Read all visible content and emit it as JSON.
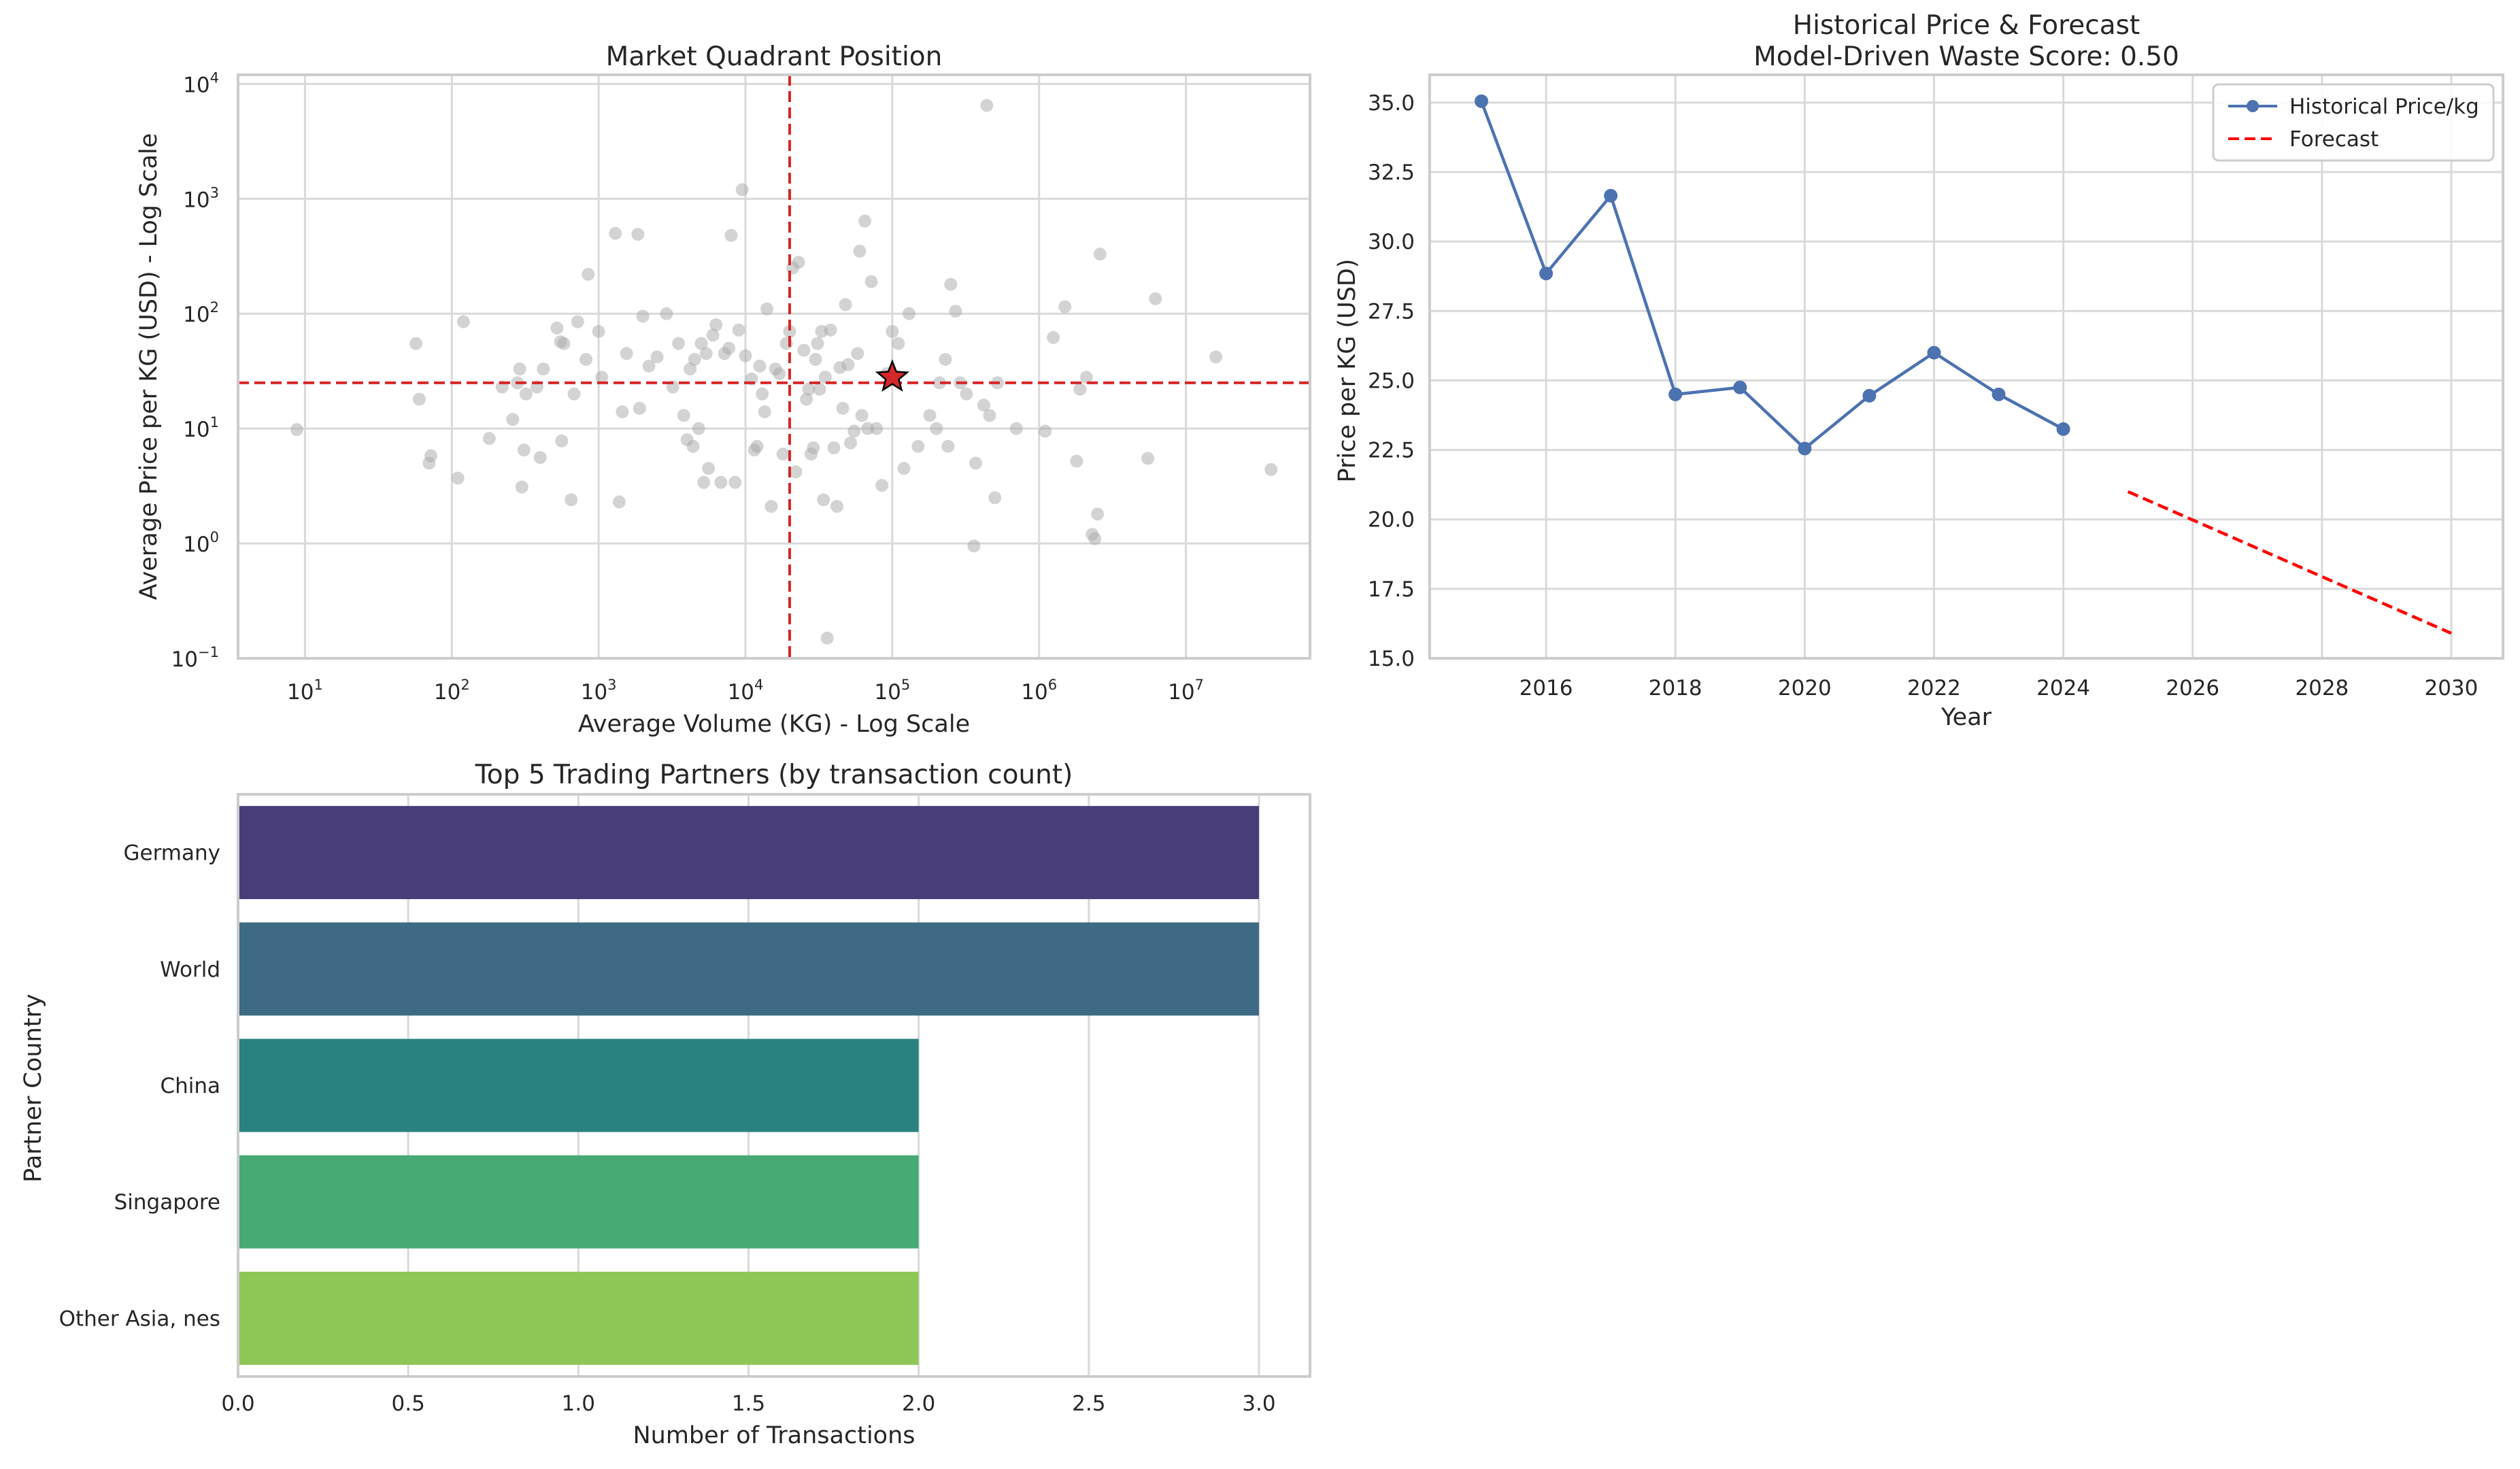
{
  "chart_data": [
    {
      "type": "scatter",
      "title": "Market Quadrant Position",
      "xlabel": "Average Volume (KG) - Log Scale",
      "ylabel": "Average Price per KG (USD) - Log Scale",
      "xscale": "log",
      "yscale": "log",
      "xlim": [
        3.5,
        70000000
      ],
      "ylim": [
        0.1,
        12000
      ],
      "x_ticks": [
        {
          "base": "10",
          "exp": "1",
          "value": 10
        },
        {
          "base": "10",
          "exp": "2",
          "value": 100
        },
        {
          "base": "10",
          "exp": "3",
          "value": 1000
        },
        {
          "base": "10",
          "exp": "4",
          "value": 10000
        },
        {
          "base": "10",
          "exp": "5",
          "value": 100000
        },
        {
          "base": "10",
          "exp": "6",
          "value": 1000000
        },
        {
          "base": "10",
          "exp": "7",
          "value": 10000000
        }
      ],
      "y_ticks": [
        {
          "base": "10",
          "exp": "−1",
          "value": 0.1
        },
        {
          "base": "10",
          "exp": "0",
          "value": 1
        },
        {
          "base": "10",
          "exp": "1",
          "value": 10
        },
        {
          "base": "10",
          "exp": "2",
          "value": 100
        },
        {
          "base": "10",
          "exp": "3",
          "value": 1000
        },
        {
          "base": "10",
          "exp": "4",
          "value": 10000
        }
      ],
      "grid": true,
      "point_color": "#a8a8a8",
      "points": [
        [
          8.8,
          9.8
        ],
        [
          57,
          55
        ],
        [
          60,
          18
        ],
        [
          70,
          5
        ],
        [
          72,
          5.8
        ],
        [
          110,
          3.7
        ],
        [
          120,
          85
        ],
        [
          180,
          8.2
        ],
        [
          220,
          23
        ],
        [
          260,
          12
        ],
        [
          280,
          25
        ],
        [
          290,
          33
        ],
        [
          300,
          3.1
        ],
        [
          310,
          6.5
        ],
        [
          320,
          20
        ],
        [
          380,
          23
        ],
        [
          400,
          5.6
        ],
        [
          420,
          33
        ],
        [
          520,
          75
        ],
        [
          550,
          57
        ],
        [
          560,
          7.8
        ],
        [
          580,
          55
        ],
        [
          650,
          2.4
        ],
        [
          680,
          20
        ],
        [
          720,
          85
        ],
        [
          820,
          40
        ],
        [
          850,
          220
        ],
        [
          1000,
          70
        ],
        [
          1050,
          28
        ],
        [
          1300,
          500
        ],
        [
          1380,
          2.3
        ],
        [
          1450,
          14
        ],
        [
          1550,
          45
        ],
        [
          1850,
          490
        ],
        [
          1900,
          15
        ],
        [
          2000,
          95
        ],
        [
          2200,
          35
        ],
        [
          2500,
          42
        ],
        [
          2900,
          100
        ],
        [
          3200,
          23
        ],
        [
          3500,
          55
        ],
        [
          3800,
          13
        ],
        [
          4000,
          8
        ],
        [
          4200,
          33
        ],
        [
          4400,
          7
        ],
        [
          4500,
          40
        ],
        [
          4800,
          10
        ],
        [
          5000,
          55
        ],
        [
          5200,
          3.4
        ],
        [
          5400,
          45
        ],
        [
          5600,
          4.5
        ],
        [
          6000,
          65
        ],
        [
          6300,
          80
        ],
        [
          6800,
          3.4
        ],
        [
          7200,
          45
        ],
        [
          7700,
          50
        ],
        [
          8000,
          480
        ],
        [
          8500,
          3.4
        ],
        [
          9000,
          72
        ],
        [
          9500,
          1200
        ],
        [
          10000,
          43
        ],
        [
          11000,
          27
        ],
        [
          11500,
          6.5
        ],
        [
          12000,
          7
        ],
        [
          12500,
          35
        ],
        [
          13000,
          20
        ],
        [
          13500,
          14
        ],
        [
          14000,
          110
        ],
        [
          15000,
          2.1
        ],
        [
          16000,
          33
        ],
        [
          17000,
          30
        ],
        [
          18000,
          6
        ],
        [
          19000,
          55
        ],
        [
          20000,
          70
        ],
        [
          21000,
          250
        ],
        [
          22000,
          4.2
        ],
        [
          23000,
          280
        ],
        [
          25000,
          48
        ],
        [
          26000,
          18
        ],
        [
          27000,
          22
        ],
        [
          28000,
          6
        ],
        [
          29000,
          6.8
        ],
        [
          30000,
          40
        ],
        [
          31000,
          55
        ],
        [
          32000,
          22
        ],
        [
          33000,
          70
        ],
        [
          34000,
          2.4
        ],
        [
          35000,
          28
        ],
        [
          36000,
          0.15
        ],
        [
          38000,
          72
        ],
        [
          40000,
          6.8
        ],
        [
          42000,
          2.1
        ],
        [
          44000,
          34
        ],
        [
          46000,
          15
        ],
        [
          48000,
          120
        ],
        [
          50000,
          36
        ],
        [
          52000,
          7.5
        ],
        [
          55000,
          9.5
        ],
        [
          58000,
          45
        ],
        [
          60000,
          350
        ],
        [
          62000,
          13
        ],
        [
          65000,
          640
        ],
        [
          68000,
          10
        ],
        [
          72000,
          190
        ],
        [
          78000,
          10
        ],
        [
          85000,
          3.2
        ],
        [
          92000,
          30
        ],
        [
          100000,
          70
        ],
        [
          110000,
          55
        ],
        [
          120000,
          4.5
        ],
        [
          130000,
          100
        ],
        [
          150000,
          7
        ],
        [
          180000,
          13
        ],
        [
          200000,
          10
        ],
        [
          210000,
          25
        ],
        [
          230000,
          40
        ],
        [
          240000,
          7
        ],
        [
          250000,
          180
        ],
        [
          270000,
          105
        ],
        [
          290000,
          25
        ],
        [
          320000,
          20
        ],
        [
          360000,
          0.95
        ],
        [
          370000,
          5
        ],
        [
          420000,
          16
        ],
        [
          440000,
          6500
        ],
        [
          460000,
          13
        ],
        [
          500000,
          2.5
        ],
        [
          520000,
          25
        ],
        [
          700000,
          10
        ],
        [
          1100000,
          9.5
        ],
        [
          1250000,
          62
        ],
        [
          1500000,
          115
        ],
        [
          1800000,
          5.2
        ],
        [
          1900000,
          22
        ],
        [
          2100000,
          28
        ],
        [
          2300000,
          1.2
        ],
        [
          2400000,
          1.1
        ],
        [
          2500000,
          1.8
        ],
        [
          2600000,
          330
        ],
        [
          5500000,
          5.5
        ],
        [
          6200000,
          135
        ],
        [
          16000000,
          42
        ],
        [
          38000000,
          4.4
        ]
      ],
      "reference_lines": {
        "x": 20000,
        "y": 25,
        "color": "#d62728"
      },
      "highlight": {
        "x": 100000,
        "y": 28,
        "color": "#d62728",
        "marker": "star"
      }
    },
    {
      "type": "line",
      "title": "Historical Price & Forecast",
      "subtitle": "Model-Driven Waste Score: 0.50",
      "xlabel": "Year",
      "ylabel": "Price per KG (USD)",
      "xlim": [
        2014.2,
        2030.8
      ],
      "ylim": [
        15.0,
        36.0
      ],
      "x_ticks": [
        "2016",
        "2018",
        "2020",
        "2022",
        "2024",
        "2026",
        "2028",
        "2030"
      ],
      "y_ticks": [
        "15.0",
        "17.5",
        "20.0",
        "22.5",
        "25.0",
        "27.5",
        "30.0",
        "32.5",
        "35.0"
      ],
      "grid": true,
      "legend_position": "top-right",
      "series": [
        {
          "name": "Historical Price/kg",
          "color": "#4c72b0",
          "style": "solid-with-markers",
          "x": [
            2015,
            2016,
            2017,
            2018,
            2019,
            2020,
            2021,
            2022,
            2023,
            2024
          ],
          "y": [
            35.05,
            28.85,
            31.65,
            24.5,
            24.75,
            22.55,
            24.45,
            26.0,
            24.5,
            23.25
          ]
        },
        {
          "name": "Forecast",
          "color": "#ff0000",
          "style": "dashed",
          "x": [
            2025,
            2030
          ],
          "y": [
            21.0,
            15.9
          ]
        }
      ]
    },
    {
      "type": "bar",
      "orientation": "horizontal",
      "title": "Top 5 Trading Partners (by transaction count)",
      "xlabel": "Number of Transactions",
      "ylabel": "Partner Country",
      "xlim": [
        0,
        3.15
      ],
      "x_ticks": [
        "0.0",
        "0.5",
        "1.0",
        "1.5",
        "2.0",
        "2.5",
        "3.0"
      ],
      "grid": true,
      "categories": [
        "Germany",
        "World",
        "China",
        "Singapore",
        "Other Asia, nes"
      ],
      "values": [
        3,
        3,
        2,
        2,
        2
      ],
      "colors": [
        "#483d77",
        "#3e6a84",
        "#2a8280",
        "#47aa74",
        "#8fc756"
      ]
    }
  ]
}
